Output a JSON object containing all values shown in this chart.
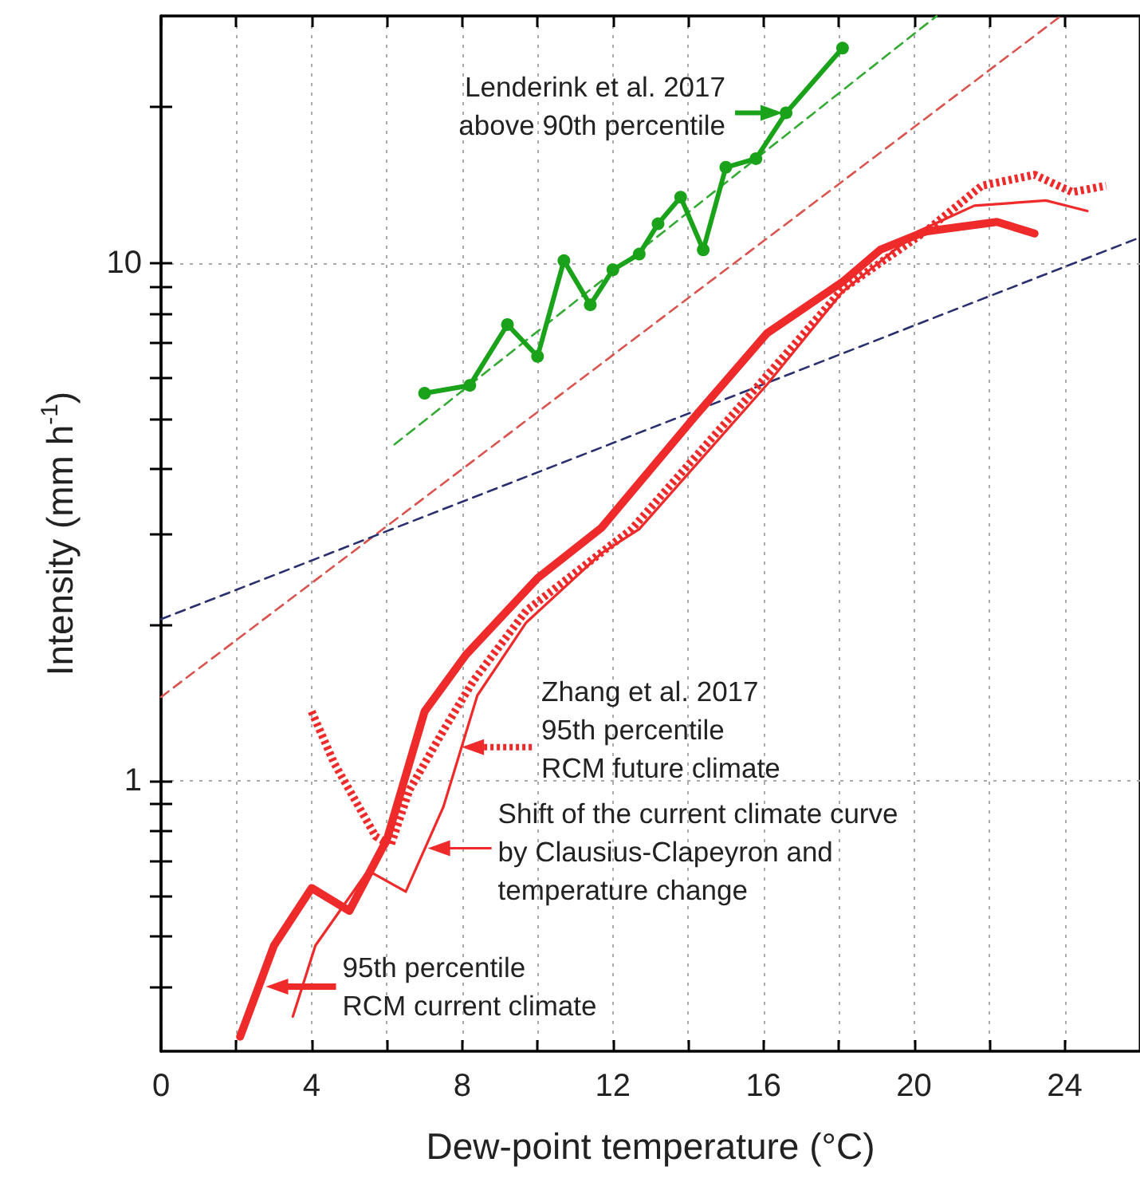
{
  "chart_data": {
    "type": "line",
    "xlabel": "Dew-point temperature (°C)",
    "ylabel": "Intensity (mm h$^{-1}$)",
    "xlim": [
      0,
      26
    ],
    "xticks": [
      0,
      {
        "value": 2,
        "label": null
      },
      4,
      {
        "value": 6,
        "label": null
      },
      8,
      {
        "value": 10,
        "label": null
      },
      12,
      {
        "value": 14,
        "label": null
      },
      16,
      {
        "value": 18,
        "label": null
      },
      20,
      {
        "value": 22,
        "label": null
      },
      24
    ],
    "ylim": [
      0.3,
      30
    ],
    "yticks": [
      {
        "value": 0.4,
        "label": null
      },
      {
        "value": 0.5,
        "label": null
      },
      {
        "value": 0.6,
        "label": null
      },
      {
        "value": 0.7,
        "label": null
      },
      {
        "value": 0.8,
        "label": null
      },
      {
        "value": 0.9,
        "label": null
      },
      1,
      {
        "value": 2,
        "label": null
      },
      {
        "value": 3,
        "label": null
      },
      {
        "value": 4,
        "label": null
      },
      {
        "value": 5,
        "label": null
      },
      {
        "value": 6,
        "label": null
      },
      {
        "value": 7,
        "label": null
      },
      {
        "value": 8,
        "label": null
      },
      {
        "value": 9,
        "label": null
      },
      10,
      {
        "value": 20,
        "label": null
      }
    ],
    "log": "y",
    "grid": true,
    "marker": "none",
    "series": [
      {
        "color": "#1aa31a",
        "marker": "circle",
        "line_style": "solid",
        "x": [
          7,
          8.2,
          9.2,
          10,
          10.7,
          11.4,
          12,
          12.7,
          13.2,
          13.8,
          14.4,
          15,
          15.8,
          16.6,
          18.1
        ],
        "values": [
          5.6,
          5.8,
          7.6,
          6.6,
          10.1,
          8.3,
          9.7,
          10.4,
          11.9,
          13.4,
          10.6,
          15.3,
          15.9,
          19.5,
          26
        ]
      },
      {
        "color": "#ee2a2a",
        "line_style": "solid",
        "x": [
          2.1,
          3,
          4,
          5,
          6,
          7,
          8.1,
          10,
          11.7,
          14.2,
          16.1,
          18.1,
          19.1,
          20.3,
          22.2,
          23.2
        ],
        "values": [
          0.32,
          0.48,
          0.62,
          0.56,
          0.77,
          1.36,
          1.75,
          2.46,
          3.08,
          5.07,
          7.32,
          9.19,
          10.6,
          11.5,
          12,
          11.4
        ]
      },
      {
        "color": "#ee2a2a",
        "line_style": "solid",
        "x": [
          3.5,
          4.1,
          5.5,
          6.5,
          7.5,
          8.4,
          9.7,
          11.7,
          12.7,
          16.1,
          18.1,
          20.1,
          21.6,
          23.5,
          24.6
        ],
        "values": [
          0.35,
          0.48,
          0.67,
          0.61,
          0.89,
          1.46,
          2.02,
          2.75,
          3.06,
          5.83,
          8.8,
          11.5,
          12.9,
          13.2,
          12.6
        ]
      },
      {
        "color": "#ee2a2a",
        "line_style": "dotted",
        "x": [
          4,
          4.6,
          5.7,
          6.1,
          6.6,
          7.5,
          8.3,
          9.7,
          12.5,
          15.9,
          18.1,
          20.3,
          21.8,
          23.2,
          24.2,
          25.1
        ],
        "values": [
          1.36,
          1.08,
          0.78,
          0.75,
          0.96,
          1.25,
          1.56,
          2.13,
          3.06,
          5.84,
          8.9,
          11.5,
          14.1,
          14.8,
          13.7,
          14.1
        ]
      },
      {
        "color": "#33aa33",
        "line_style": "dashed",
        "x": [
          6.2,
          20.6
        ],
        "values": [
          4.46,
          30
        ]
      },
      {
        "color": "#d9534f",
        "line_style": "dashed",
        "x": [
          0,
          23.9
        ],
        "values": [
          1.45,
          30
        ]
      },
      {
        "color": "#2a2f6e",
        "line_style": "dashed",
        "x": [
          0,
          26
        ],
        "values": [
          2.05,
          11.2
        ]
      }
    ],
    "annotations": [
      {
        "text": "Lenderink et al. 2017\nabove 90th percentile",
        "x": 16.6,
        "y": 19.5
      },
      {
        "text": "95th percentile\nRCM current climate",
        "x": 2.7,
        "y": 0.4
      },
      {
        "text": "Shift of the current climate curve\nby Clausius-Clapeyron and\ntemperature change",
        "x": 7,
        "y": 0.74
      },
      {
        "text": "Zhang et al. 2017\n95th percentile\nRCM future climate",
        "x": 7.9,
        "y": 1.16
      }
    ]
  }
}
